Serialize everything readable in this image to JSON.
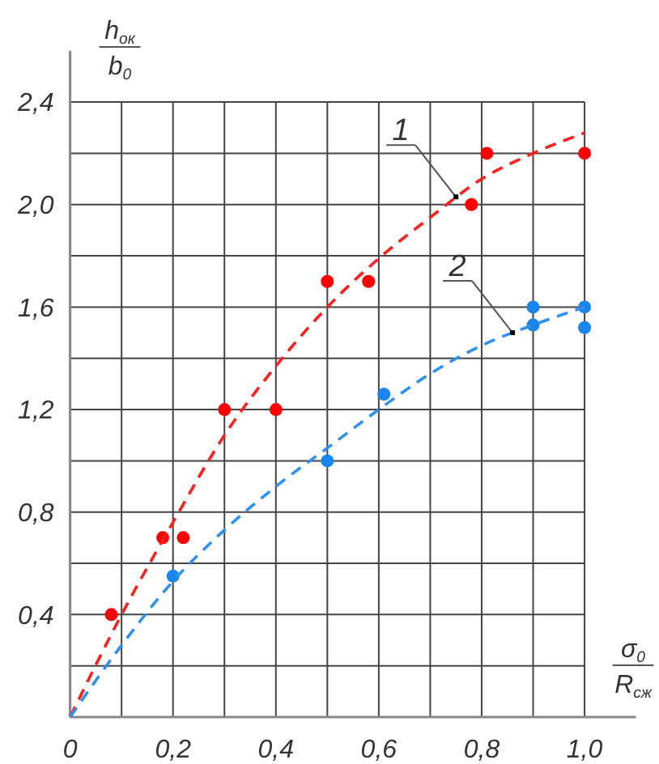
{
  "chart_data": {
    "type": "scatter",
    "xlabel": "σ$_{0}$\nR$_{сж}$",
    "ylabel": "h$_{ок}$\nb$_{0}$",
    "xlim": [
      0,
      1.1
    ],
    "ylim": [
      0,
      2.6
    ],
    "xticks": [
      0,
      {
        "value": 0.1,
        "label": null
      },
      {
        "value": 0.2,
        "label": "0,2"
      },
      {
        "value": 0.3,
        "label": null
      },
      {
        "value": 0.4,
        "label": "0,4"
      },
      {
        "value": 0.5,
        "label": null
      },
      {
        "value": 0.6,
        "label": "0,6"
      },
      {
        "value": 0.7,
        "label": null
      },
      {
        "value": 0.8,
        "label": "0,8"
      },
      {
        "value": 0.9,
        "label": null
      },
      {
        "value": 1.0,
        "label": "1,0"
      }
    ],
    "yticks": [
      {
        "value": 0.2,
        "label": null
      },
      {
        "value": 0.4,
        "label": "0,4"
      },
      {
        "value": 0.6,
        "label": null
      },
      {
        "value": 0.8,
        "label": "0,8"
      },
      {
        "value": 1.0,
        "label": null
      },
      {
        "value": 1.2,
        "label": "1,2"
      },
      {
        "value": 1.4,
        "label": null
      },
      {
        "value": 1.6,
        "label": "1,6"
      },
      {
        "value": 1.8,
        "label": null
      },
      {
        "value": 2.0,
        "label": "2,0"
      },
      {
        "value": 2.2,
        "label": null
      },
      {
        "value": 2.4,
        "label": "2,4"
      }
    ],
    "grid": true,
    "series": [
      {
        "color": "#ff0000",
        "marker": "circle",
        "x": [
          0.08,
          0.18,
          0.22,
          0.3,
          0.4,
          0.5,
          0.58,
          0.78,
          0.81,
          1.0
        ],
        "values": [
          0.4,
          0.7,
          0.7,
          1.2,
          1.2,
          1.7,
          1.7,
          2.0,
          2.2,
          2.2
        ]
      },
      {
        "type": "line",
        "color": "#ff2020",
        "line_style": "dashed",
        "x": [
          0,
          0.1,
          0.2,
          0.3,
          0.4,
          0.5,
          0.6,
          0.7,
          0.8,
          0.9,
          1.0
        ],
        "values": [
          0,
          0.4,
          0.76,
          1.1,
          1.37,
          1.6,
          1.79,
          1.95,
          2.1,
          2.2,
          2.28
        ]
      },
      {
        "color": "#1a85ec",
        "marker": "circle",
        "x": [
          0.2,
          0.5,
          0.61,
          0.9,
          0.9,
          1.0,
          1.0
        ],
        "values": [
          0.55,
          1.0,
          1.26,
          1.6,
          1.53,
          1.6,
          1.52
        ]
      },
      {
        "type": "line",
        "color": "#2e90f0",
        "line_style": "dashed",
        "x": [
          0,
          0.1,
          0.2,
          0.3,
          0.4,
          0.5,
          0.6,
          0.7,
          0.8,
          0.9,
          1.0
        ],
        "values": [
          0,
          0.28,
          0.53,
          0.73,
          0.9,
          1.05,
          1.2,
          1.34,
          1.45,
          1.53,
          1.6
        ]
      }
    ],
    "annotations": [
      {
        "text": "1",
        "x": 0.75,
        "y": 2.03
      },
      {
        "text": "2",
        "x": 0.86,
        "y": 1.5
      }
    ]
  }
}
